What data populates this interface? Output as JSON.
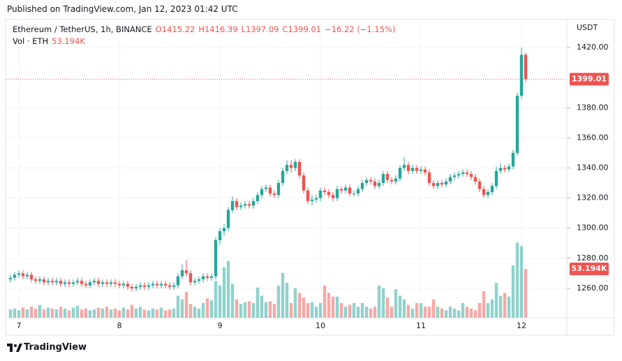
{
  "header": {
    "published": "Published on TradingView.com, Jan 12, 2023 01:42 UTC"
  },
  "chart_data": {
    "type": "candlestick",
    "symbol": "Ethereum / TetherUS, 1h, BINANCE",
    "legend_values": [
      "O1415.22",
      "H1416.39",
      "L1397.09",
      "C1399.01",
      "−16.22 (−1.15%)"
    ],
    "volume_name": "Vol · ETH",
    "volume_label": "53.194K",
    "y_axis_label": "USDT",
    "up_color": "#26a69a",
    "down_color": "#ef5350",
    "grid": true,
    "ylim": [
      1240.5,
      1438.6
    ],
    "yticks": [
      {
        "value": 1260,
        "label": "1260.00"
      },
      {
        "value": 1280,
        "label": "1280.00"
      },
      {
        "value": 1300,
        "label": "1300.00"
      },
      {
        "value": 1320,
        "label": "1320.00"
      },
      {
        "value": 1340,
        "label": "1340.00"
      },
      {
        "value": 1360,
        "label": "1360.00"
      },
      {
        "value": 1380,
        "label": "1380.00"
      },
      {
        "value": 1420,
        "label": "1420.00"
      }
    ],
    "vlim": [
      0,
      325000
    ],
    "categories": [
      null,
      null,
      "7",
      null,
      null,
      null,
      null,
      null,
      null,
      null,
      null,
      null,
      null,
      null,
      null,
      null,
      null,
      null,
      null,
      null,
      null,
      null,
      null,
      null,
      null,
      null,
      "8",
      null,
      null,
      null,
      null,
      null,
      null,
      null,
      null,
      null,
      null,
      null,
      null,
      null,
      null,
      null,
      null,
      null,
      null,
      null,
      null,
      null,
      null,
      null,
      "9",
      null,
      null,
      null,
      null,
      null,
      null,
      null,
      null,
      null,
      null,
      null,
      null,
      null,
      null,
      null,
      null,
      null,
      null,
      null,
      null,
      null,
      null,
      null,
      "10",
      null,
      null,
      null,
      null,
      null,
      null,
      null,
      null,
      null,
      null,
      null,
      null,
      null,
      null,
      null,
      null,
      null,
      null,
      null,
      null,
      null,
      null,
      null,
      "11",
      null,
      null,
      null,
      null,
      null,
      null,
      null,
      null,
      null,
      null,
      null,
      null,
      null,
      null,
      null,
      null,
      null,
      null,
      null,
      null,
      null,
      null,
      null,
      "12",
      null
    ],
    "open": [
      1266,
      1267,
      1269,
      1270,
      1268,
      1269,
      1266,
      1265,
      1266,
      1264,
      1265,
      1264,
      1265,
      1263,
      1264,
      1263,
      1264,
      1265,
      1263,
      1262,
      1264,
      1265,
      1263,
      1264,
      1263,
      1264,
      1263,
      1262,
      1263,
      1261,
      1260,
      1261,
      1262,
      1261,
      1262,
      1263,
      1262,
      1263,
      1262,
      1261,
      1262,
      1268,
      1272,
      1270,
      1264,
      1265,
      1266,
      1268,
      1267,
      1268,
      1292,
      1298,
      1300,
      1312,
      1318,
      1314,
      1315,
      1316,
      1315,
      1318,
      1322,
      1326,
      1327,
      1323,
      1322,
      1330,
      1338,
      1342,
      1340,
      1344,
      1335,
      1325,
      1318,
      1319,
      1320,
      1325,
      1324,
      1322,
      1320,
      1326,
      1325,
      1327,
      1323,
      1323,
      1326,
      1330,
      1332,
      1331,
      1328,
      1330,
      1336,
      1332,
      1331,
      1333,
      1340,
      1342,
      1338,
      1340,
      1338,
      1339,
      1337,
      1330,
      1328,
      1330,
      1329,
      1331,
      1334,
      1335,
      1336,
      1337,
      1336,
      1334,
      1331,
      1326,
      1322,
      1324,
      1328,
      1338,
      1340,
      1339,
      1341,
      1350,
      1388,
      1415.22
    ],
    "high": [
      1269,
      1271,
      1272,
      1272,
      1271,
      1271,
      1268,
      1268,
      1268,
      1267,
      1267,
      1267,
      1267,
      1266,
      1266,
      1266,
      1267,
      1267,
      1265,
      1266,
      1267,
      1267,
      1266,
      1266,
      1266,
      1266,
      1265,
      1265,
      1265,
      1263,
      1263,
      1264,
      1264,
      1264,
      1265,
      1265,
      1265,
      1265,
      1264,
      1264,
      1270,
      1276,
      1279,
      1272,
      1267,
      1268,
      1270,
      1270,
      1270,
      1294,
      1300,
      1303,
      1314,
      1321,
      1320,
      1317,
      1318,
      1318,
      1320,
      1324,
      1328,
      1329,
      1329,
      1325,
      1332,
      1340,
      1345,
      1345,
      1346,
      1346,
      1337,
      1327,
      1322,
      1322,
      1327,
      1327,
      1326,
      1324,
      1328,
      1328,
      1329,
      1329,
      1325,
      1328,
      1332,
      1334,
      1334,
      1333,
      1332,
      1338,
      1338,
      1334,
      1335,
      1342,
      1347,
      1344,
      1342,
      1342,
      1341,
      1341,
      1339,
      1332,
      1332,
      1332,
      1333,
      1336,
      1337,
      1338,
      1339,
      1339,
      1338,
      1336,
      1333,
      1328,
      1326,
      1330,
      1341,
      1343,
      1342,
      1343,
      1352,
      1390,
      1420,
      1416.39
    ],
    "low": [
      1264,
      1265,
      1267,
      1266,
      1266,
      1264,
      1263,
      1263,
      1262,
      1262,
      1262,
      1262,
      1261,
      1261,
      1261,
      1261,
      1262,
      1261,
      1260,
      1260,
      1262,
      1261,
      1261,
      1261,
      1261,
      1261,
      1260,
      1260,
      1259,
      1258,
      1258,
      1259,
      1259,
      1259,
      1260,
      1260,
      1260,
      1260,
      1259,
      1259,
      1260,
      1266,
      1268,
      1262,
      1262,
      1263,
      1264,
      1265,
      1265,
      1266,
      1289,
      1295,
      1298,
      1310,
      1312,
      1312,
      1313,
      1313,
      1313,
      1316,
      1320,
      1324,
      1321,
      1320,
      1320,
      1328,
      1336,
      1337,
      1338,
      1333,
      1323,
      1316,
      1315,
      1317,
      1318,
      1322,
      1320,
      1318,
      1318,
      1323,
      1323,
      1321,
      1321,
      1321,
      1324,
      1328,
      1329,
      1326,
      1326,
      1328,
      1330,
      1329,
      1329,
      1331,
      1338,
      1336,
      1336,
      1336,
      1336,
      1335,
      1328,
      1326,
      1326,
      1327,
      1327,
      1329,
      1332,
      1333,
      1334,
      1334,
      1332,
      1329,
      1324,
      1320,
      1320,
      1322,
      1326,
      1336,
      1337,
      1337,
      1339,
      1348,
      1386,
      1397.09
    ],
    "close": [
      1267,
      1269,
      1270,
      1268,
      1269,
      1266,
      1265,
      1266,
      1264,
      1265,
      1264,
      1265,
      1263,
      1264,
      1263,
      1264,
      1265,
      1263,
      1262,
      1264,
      1265,
      1263,
      1264,
      1263,
      1264,
      1263,
      1262,
      1263,
      1261,
      1260,
      1261,
      1262,
      1261,
      1262,
      1263,
      1262,
      1263,
      1262,
      1261,
      1262,
      1268,
      1272,
      1270,
      1264,
      1265,
      1266,
      1268,
      1267,
      1268,
      1292,
      1298,
      1300,
      1312,
      1318,
      1314,
      1315,
      1316,
      1315,
      1318,
      1322,
      1326,
      1327,
      1323,
      1322,
      1330,
      1338,
      1342,
      1340,
      1344,
      1335,
      1325,
      1318,
      1319,
      1320,
      1325,
      1324,
      1322,
      1320,
      1326,
      1325,
      1327,
      1323,
      1323,
      1326,
      1330,
      1332,
      1331,
      1328,
      1330,
      1336,
      1332,
      1331,
      1333,
      1340,
      1342,
      1338,
      1340,
      1338,
      1339,
      1337,
      1330,
      1328,
      1330,
      1329,
      1331,
      1334,
      1335,
      1336,
      1337,
      1336,
      1334,
      1331,
      1326,
      1322,
      1324,
      1328,
      1338,
      1340,
      1339,
      1341,
      1350,
      1388,
      1415.22,
      1399.01
    ],
    "volume": [
      9000,
      10000,
      8000,
      11000,
      9000,
      12000,
      10000,
      14000,
      9000,
      11000,
      10000,
      9000,
      12000,
      10000,
      8000,
      11000,
      13000,
      9000,
      10000,
      8000,
      9000,
      11000,
      10000,
      12000,
      9000,
      10000,
      8000,
      11000,
      9000,
      14000,
      10000,
      12000,
      9000,
      8000,
      10000,
      9000,
      11000,
      8000,
      9000,
      10000,
      24000,
      20000,
      28000,
      15000,
      12000,
      10000,
      16000,
      21000,
      19000,
      40000,
      35000,
      55000,
      62000,
      37000,
      20000,
      15000,
      17000,
      18000,
      16000,
      33000,
      24000,
      17000,
      18000,
      15000,
      35000,
      49000,
      38000,
      16000,
      32000,
      27000,
      22000,
      16000,
      17000,
      12000,
      16000,
      35000,
      27000,
      23000,
      23000,
      16000,
      12000,
      14000,
      16000,
      12000,
      16000,
      12000,
      10000,
      12000,
      35000,
      32000,
      22000,
      12000,
      31000,
      24000,
      20000,
      14000,
      10000,
      16000,
      16000,
      12000,
      12000,
      20000,
      12000,
      10000,
      8000,
      12000,
      10000,
      8000,
      16000,
      12000,
      10000,
      8000,
      16000,
      29000,
      16000,
      20000,
      38000,
      24000,
      27000,
      23000,
      57000,
      82000,
      78000,
      53194
    ]
  },
  "footer": {
    "brand": "TradingView"
  }
}
